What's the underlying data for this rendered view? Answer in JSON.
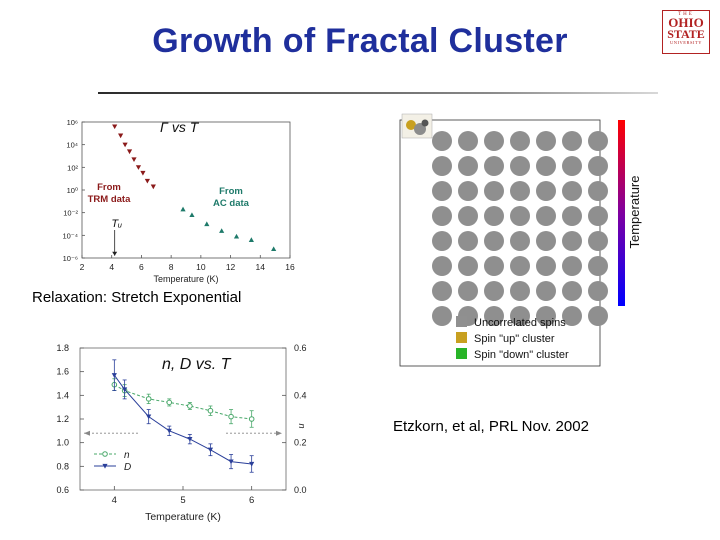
{
  "slide": {
    "title": "Growth of Fractal Cluster",
    "relaxation_caption": "Relaxation: Stretch Exponential",
    "citation": "Etzkorn, et al, PRL Nov. 2002"
  },
  "logo": {
    "line1": "THE",
    "line2": "OHIO",
    "line3": "STATE",
    "line4": "UNIVERSITY"
  },
  "chart_data": [
    {
      "type": "scatter",
      "title": "Γ vs T",
      "xlabel": "Temperature (K)",
      "ylabel": "",
      "xlim": [
        2,
        16
      ],
      "ylim_exponent": [
        -6,
        6
      ],
      "y_scale": "log",
      "x_ticks": [
        "2",
        "4",
        "6",
        "8",
        "10",
        "12",
        "14",
        "16"
      ],
      "y_ticks": [
        "10⁶",
        "10⁴",
        "10²",
        "10⁰",
        "10⁻²",
        "10⁻⁴",
        "10⁻⁶"
      ],
      "series": [
        {
          "name": "From TRM data",
          "label": "From\nTRM data",
          "color": "#8b1a1a",
          "marker": "triangle-down",
          "x": [
            4.2,
            4.6,
            4.9,
            5.2,
            5.5,
            5.8,
            6.1,
            6.4,
            6.8
          ],
          "log10_y": [
            5.6,
            4.8,
            4.0,
            3.4,
            2.7,
            2.0,
            1.5,
            0.8,
            0.3
          ]
        },
        {
          "name": "From AC data",
          "label": "From\nAC data",
          "color": "#1e7a6a",
          "marker": "triangle-up",
          "x": [
            8.8,
            9.4,
            10.4,
            11.4,
            12.4,
            13.4,
            14.9
          ],
          "log10_y": [
            -1.7,
            -2.2,
            -3.0,
            -3.6,
            -4.1,
            -4.4,
            -5.2
          ]
        }
      ],
      "annotations": [
        {
          "text": "Tᵤ",
          "x": 4.2,
          "arrow_to_log10_y": -5.8
        }
      ],
      "grid": false
    },
    {
      "type": "line",
      "title": "n, D vs. T",
      "xlabel": "Temperature (K)",
      "ylabel_right": "n",
      "xlim": [
        3.5,
        6.5
      ],
      "ylim": [
        0.6,
        1.8
      ],
      "ylim_right": [
        0.0,
        0.6
      ],
      "x_ticks": [
        "4",
        "5",
        "6"
      ],
      "y_ticks": [
        "0.6",
        "0.8",
        "1.0",
        "1.2",
        "1.4",
        "1.6",
        "1.8"
      ],
      "y_ticks_right": [
        "0.0",
        "0.2",
        "0.4",
        "0.6"
      ],
      "series": [
        {
          "name": "n",
          "color": "#49a86a",
          "marker": "circle",
          "x": [
            4.0,
            4.15,
            4.5,
            4.8,
            5.1,
            5.4,
            5.7,
            6.0
          ],
          "y": [
            1.49,
            1.44,
            1.37,
            1.34,
            1.31,
            1.27,
            1.22,
            1.2
          ],
          "err": [
            0.05,
            0.05,
            0.04,
            0.03,
            0.03,
            0.04,
            0.06,
            0.07
          ]
        },
        {
          "name": "D",
          "color": "#2a3f9a",
          "marker": "triangle-down",
          "x": [
            4.0,
            4.15,
            4.5,
            4.8,
            5.1,
            5.4,
            5.7,
            6.0
          ],
          "y": [
            1.57,
            1.45,
            1.22,
            1.1,
            1.03,
            0.94,
            0.84,
            0.82
          ],
          "err": [
            0.13,
            0.08,
            0.06,
            0.04,
            0.04,
            0.05,
            0.06,
            0.07
          ]
        }
      ],
      "legend": "bottom-left",
      "grid": false
    }
  ],
  "spin_panel": {
    "rows": 8,
    "cols": 7,
    "colorbar_label": "Temperature",
    "legend": [
      {
        "label": "Uncorrelated spins",
        "color": "#909090"
      },
      {
        "label": "Spin \"up\" cluster",
        "color": "#c8a020"
      },
      {
        "label": "Spin \"down\" cluster",
        "color": "#28b428"
      }
    ],
    "spin_color": "#8f8f8f"
  }
}
